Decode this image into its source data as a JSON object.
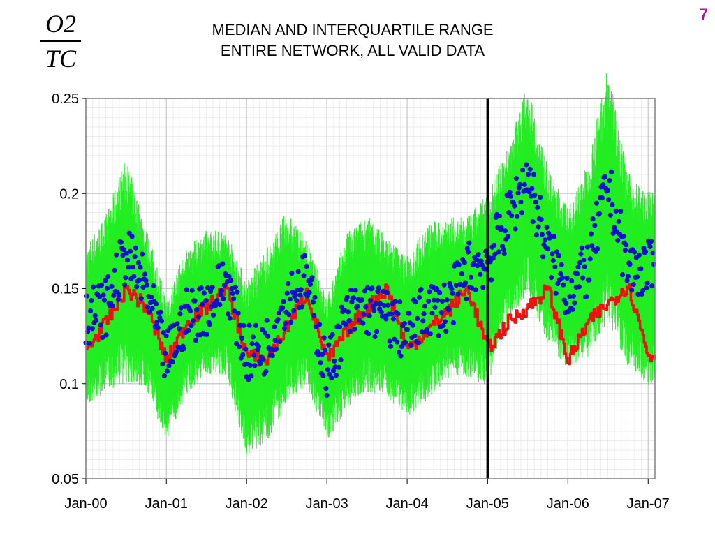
{
  "fraction": {
    "numerator": "O2",
    "denominator": "TC"
  },
  "title_lines": [
    "MEDIAN AND INTERQUARTILE RANGE",
    "ENTIRE NETWORK, ALL VALID DATA"
  ],
  "page_number": "7",
  "colors": {
    "band": "#22ee22",
    "median": "#ee1111",
    "points": "#1111cc",
    "grid": "#c8c8c8",
    "marker_line": "#000000"
  },
  "chart_data": {
    "type": "line",
    "x_axis": {
      "min": "2000-01-01",
      "max": "2007-02-01",
      "ticks": [
        "Jan-00",
        "Jan-01",
        "Jan-02",
        "Jan-03",
        "Jan-04",
        "Jan-05",
        "Jan-06",
        "Jan-07"
      ]
    },
    "y_axis": {
      "min": 0.05,
      "max": 0.25,
      "ticks": [
        "0.05",
        "0.1",
        "0.15",
        "0.2",
        "0.25"
      ]
    },
    "grid": true,
    "vertical_marker": "2005-01-01",
    "series": [
      {
        "kind": "band",
        "label": "interquartile range",
        "x": [
          "2000-01",
          "2000-04",
          "2000-07",
          "2000-10",
          "2001-01",
          "2001-04",
          "2001-07",
          "2001-10",
          "2002-01",
          "2002-04",
          "2002-07",
          "2002-10",
          "2003-01",
          "2003-04",
          "2003-07",
          "2003-10",
          "2004-01",
          "2004-04",
          "2004-07",
          "2004-10",
          "2005-01",
          "2005-04",
          "2005-07",
          "2005-10",
          "2006-01",
          "2006-04",
          "2006-07",
          "2006-10",
          "2007-01"
        ],
        "low": [
          0.105,
          0.115,
          0.125,
          0.115,
          0.085,
          0.11,
          0.12,
          0.12,
          0.08,
          0.09,
          0.11,
          0.115,
          0.085,
          0.105,
          0.115,
          0.11,
          0.1,
          0.11,
          0.12,
          0.12,
          0.12,
          0.15,
          0.17,
          0.14,
          0.125,
          0.135,
          0.16,
          0.13,
          0.12
        ],
        "high": [
          0.155,
          0.17,
          0.195,
          0.165,
          0.13,
          0.155,
          0.165,
          0.165,
          0.135,
          0.15,
          0.17,
          0.16,
          0.13,
          0.16,
          0.17,
          0.16,
          0.15,
          0.165,
          0.17,
          0.17,
          0.18,
          0.205,
          0.235,
          0.195,
          0.175,
          0.195,
          0.24,
          0.19,
          0.18
        ]
      },
      {
        "kind": "line",
        "label": "median",
        "x": [
          "2000-01",
          "2000-04",
          "2000-07",
          "2000-10",
          "2001-01",
          "2001-04",
          "2001-07",
          "2001-10",
          "2002-01",
          "2002-04",
          "2002-07",
          "2002-10",
          "2003-01",
          "2003-04",
          "2003-07",
          "2003-10",
          "2004-01",
          "2004-04",
          "2004-07",
          "2004-10",
          "2005-01",
          "2005-04",
          "2005-07",
          "2005-10",
          "2006-01",
          "2006-04",
          "2006-07",
          "2006-10",
          "2007-01"
        ],
        "values": [
          0.118,
          0.132,
          0.15,
          0.14,
          0.112,
          0.132,
          0.14,
          0.15,
          0.115,
          0.112,
          0.13,
          0.148,
          0.112,
          0.128,
          0.14,
          0.15,
          0.118,
          0.128,
          0.138,
          0.15,
          0.118,
          0.132,
          0.14,
          0.15,
          0.112,
          0.132,
          0.142,
          0.152,
          0.115
        ]
      },
      {
        "kind": "points",
        "label": "observations",
        "x": [
          "2000-01",
          "2000-04",
          "2000-07",
          "2000-10",
          "2001-01",
          "2001-04",
          "2001-07",
          "2001-10",
          "2002-01",
          "2002-04",
          "2002-07",
          "2002-10",
          "2003-01",
          "2003-04",
          "2003-07",
          "2003-10",
          "2004-01",
          "2004-04",
          "2004-07",
          "2004-10",
          "2005-01",
          "2005-04",
          "2005-07",
          "2005-10",
          "2006-01",
          "2006-04",
          "2006-07",
          "2006-10",
          "2007-01"
        ],
        "values": [
          0.135,
          0.14,
          0.168,
          0.15,
          0.112,
          0.135,
          0.14,
          0.155,
          0.115,
          0.12,
          0.145,
          0.155,
          0.105,
          0.135,
          0.14,
          0.135,
          0.125,
          0.14,
          0.14,
          0.16,
          0.165,
          0.185,
          0.21,
          0.17,
          0.148,
          0.16,
          0.205,
          0.16,
          0.16
        ]
      }
    ]
  }
}
